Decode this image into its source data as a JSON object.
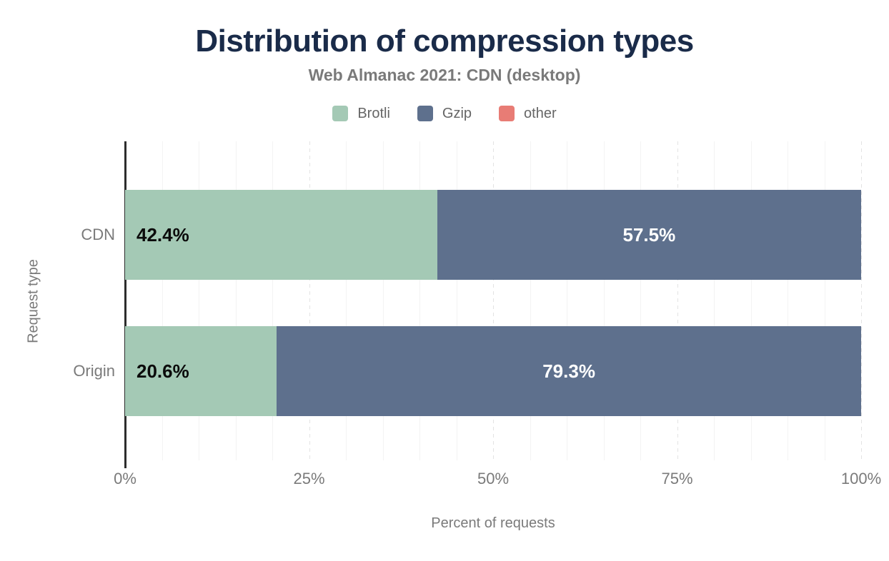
{
  "colors": {
    "title": "#1a2b49",
    "muted": "#7a7a7a",
    "axis": "#2d2d2d"
  },
  "chart_data": {
    "type": "bar",
    "orientation": "horizontal",
    "stacked": true,
    "percent_scale": true,
    "title": "Distribution of compression types",
    "subtitle": "Web Almanac 2021: CDN (desktop)",
    "xlabel": "Percent of requests",
    "ylabel": "Request type",
    "categories": [
      "CDN",
      "Origin"
    ],
    "series": [
      {
        "name": "Brotli",
        "color": "#a4c9b5",
        "values": [
          42.4,
          20.6
        ],
        "labels": [
          "42.4%",
          "20.6%"
        ],
        "label_style": "inside-start-dark"
      },
      {
        "name": "Gzip",
        "color": "#5e708d",
        "values": [
          57.5,
          79.3
        ],
        "labels": [
          "57.5%",
          "79.3%"
        ],
        "label_style": "inside-center-white"
      },
      {
        "name": "other",
        "color": "#e87c75",
        "values": [
          0.1,
          0.1
        ],
        "labels": [
          "",
          ""
        ],
        "label_style": "none"
      }
    ],
    "x_ticks": [
      {
        "value": 0,
        "label": "0%"
      },
      {
        "value": 25,
        "label": "25%"
      },
      {
        "value": 50,
        "label": "50%"
      },
      {
        "value": 75,
        "label": "75%"
      },
      {
        "value": 100,
        "label": "100%"
      }
    ],
    "xlim": [
      0,
      100
    ],
    "grid": {
      "axis": "x",
      "minor_step": 5,
      "major_step": 25
    },
    "legend_position": "top"
  }
}
